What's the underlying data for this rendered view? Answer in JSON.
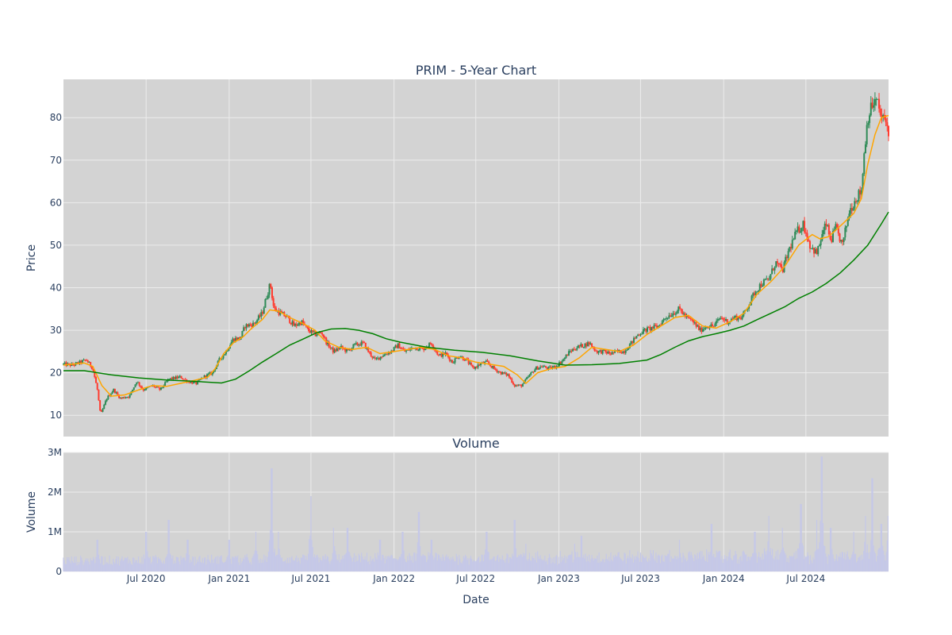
{
  "chart_data": {
    "type": "candlestick",
    "title": "PRIM - 5-Year Chart",
    "price_panel": {
      "ylabel": "Price",
      "yticks": [
        10,
        20,
        30,
        40,
        50,
        60,
        70,
        80
      ],
      "ylim": [
        5,
        89
      ],
      "moving_averages": [
        {
          "color": "#ffa500",
          "points": [
            [
              "2019-12-31",
              21.8
            ],
            [
              "2020-02-15",
              22.3
            ],
            [
              "2020-03-05",
              21.5
            ],
            [
              "2020-03-25",
              17.0
            ],
            [
              "2020-04-15",
              14.5
            ],
            [
              "2020-05-15",
              14.8
            ],
            [
              "2020-06-15",
              16.0
            ],
            [
              "2020-07-15",
              17.0
            ],
            [
              "2020-08-15",
              16.8
            ],
            [
              "2020-09-15",
              17.5
            ],
            [
              "2020-10-15",
              18.2
            ],
            [
              "2020-11-15",
              19.0
            ],
            [
              "2020-12-01",
              21.0
            ],
            [
              "2020-12-20",
              24.5
            ],
            [
              "2021-01-10",
              27.0
            ],
            [
              "2021-02-01",
              28.5
            ],
            [
              "2021-02-20",
              30.5
            ],
            [
              "2021-03-15",
              32.5
            ],
            [
              "2021-04-01",
              34.8
            ],
            [
              "2021-04-20",
              34.5
            ],
            [
              "2021-05-15",
              33.0
            ],
            [
              "2021-06-15",
              31.5
            ],
            [
              "2021-07-10",
              30.0
            ],
            [
              "2021-08-01",
              27.5
            ],
            [
              "2021-09-01",
              26.0
            ],
            [
              "2021-10-01",
              25.5
            ],
            [
              "2021-11-01",
              26.0
            ],
            [
              "2021-12-01",
              24.5
            ],
            [
              "2022-01-01",
              25.0
            ],
            [
              "2022-02-01",
              25.5
            ],
            [
              "2022-03-01",
              26.0
            ],
            [
              "2022-04-01",
              25.5
            ],
            [
              "2022-05-01",
              24.0
            ],
            [
              "2022-06-01",
              23.5
            ],
            [
              "2022-07-01",
              22.5
            ],
            [
              "2022-08-01",
              22.0
            ],
            [
              "2022-09-01",
              21.5
            ],
            [
              "2022-10-01",
              19.5
            ],
            [
              "2022-10-20",
              17.5
            ],
            [
              "2022-11-15",
              20.0
            ],
            [
              "2022-12-15",
              21.0
            ],
            [
              "2023-01-15",
              21.5
            ],
            [
              "2023-02-15",
              23.5
            ],
            [
              "2023-03-15",
              26.0
            ],
            [
              "2023-04-15",
              25.5
            ],
            [
              "2023-05-15",
              25.0
            ],
            [
              "2023-06-15",
              26.5
            ],
            [
              "2023-07-15",
              29.0
            ],
            [
              "2023-08-15",
              31.0
            ],
            [
              "2023-09-15",
              33.0
            ],
            [
              "2023-10-15",
              33.5
            ],
            [
              "2023-11-15",
              31.0
            ],
            [
              "2023-12-15",
              30.5
            ],
            [
              "2024-01-15",
              32.0
            ],
            [
              "2024-02-15",
              34.0
            ],
            [
              "2024-03-15",
              38.5
            ],
            [
              "2024-04-15",
              41.5
            ],
            [
              "2024-05-15",
              45.0
            ],
            [
              "2024-06-15",
              50.0
            ],
            [
              "2024-07-15",
              52.5
            ],
            [
              "2024-08-01",
              51.5
            ],
            [
              "2024-08-20",
              52.0
            ],
            [
              "2024-09-15",
              54.5
            ],
            [
              "2024-10-15",
              57.5
            ],
            [
              "2024-11-01",
              61.0
            ],
            [
              "2024-11-15",
              69.0
            ],
            [
              "2024-12-01",
              76.0
            ],
            [
              "2024-12-15",
              80.0
            ],
            [
              "2024-12-31",
              80.5
            ]
          ]
        },
        {
          "color": "#008000",
          "points": [
            [
              "2019-12-31",
              20.5
            ],
            [
              "2020-02-15",
              20.5
            ],
            [
              "2020-04-15",
              19.5
            ],
            [
              "2020-06-15",
              18.8
            ],
            [
              "2020-08-15",
              18.3
            ],
            [
              "2020-10-15",
              18.0
            ],
            [
              "2020-12-15",
              17.6
            ],
            [
              "2021-01-15",
              18.5
            ],
            [
              "2021-02-15",
              20.5
            ],
            [
              "2021-03-15",
              22.5
            ],
            [
              "2021-04-15",
              24.5
            ],
            [
              "2021-05-15",
              26.5
            ],
            [
              "2021-06-15",
              28.0
            ],
            [
              "2021-07-15",
              29.5
            ],
            [
              "2021-08-15",
              30.3
            ],
            [
              "2021-09-15",
              30.4
            ],
            [
              "2021-10-15",
              30.0
            ],
            [
              "2021-11-15",
              29.2
            ],
            [
              "2021-12-15",
              28.0
            ],
            [
              "2022-01-15",
              27.2
            ],
            [
              "2022-03-15",
              26.0
            ],
            [
              "2022-05-15",
              25.3
            ],
            [
              "2022-07-15",
              24.8
            ],
            [
              "2022-09-15",
              24.0
            ],
            [
              "2022-11-15",
              22.8
            ],
            [
              "2023-01-15",
              21.8
            ],
            [
              "2023-03-15",
              21.9
            ],
            [
              "2023-05-15",
              22.2
            ],
            [
              "2023-07-15",
              23.0
            ],
            [
              "2023-08-15",
              24.3
            ],
            [
              "2023-09-15",
              26.0
            ],
            [
              "2023-10-15",
              27.5
            ],
            [
              "2023-11-15",
              28.5
            ],
            [
              "2023-12-15",
              29.2
            ],
            [
              "2024-01-15",
              30.0
            ],
            [
              "2024-02-15",
              31.0
            ],
            [
              "2024-03-15",
              32.5
            ],
            [
              "2024-04-15",
              34.0
            ],
            [
              "2024-05-15",
              35.5
            ],
            [
              "2024-06-15",
              37.5
            ],
            [
              "2024-07-15",
              39.0
            ],
            [
              "2024-08-15",
              41.0
            ],
            [
              "2024-09-15",
              43.5
            ],
            [
              "2024-10-15",
              46.5
            ],
            [
              "2024-11-15",
              50.0
            ],
            [
              "2024-12-15",
              55.0
            ],
            [
              "2024-12-31",
              57.8
            ]
          ]
        }
      ]
    },
    "candlestick_path": [
      [
        "2019-12-31",
        22
      ],
      [
        "2020-01-20",
        21.8
      ],
      [
        "2020-02-20",
        23
      ],
      [
        "2020-03-05",
        21
      ],
      [
        "2020-03-15",
        16
      ],
      [
        "2020-03-22",
        10
      ],
      [
        "2020-04-05",
        14
      ],
      [
        "2020-04-20",
        16
      ],
      [
        "2020-05-05",
        14
      ],
      [
        "2020-05-25",
        14.5
      ],
      [
        "2020-06-10",
        18
      ],
      [
        "2020-06-25",
        16
      ],
      [
        "2020-07-15",
        17
      ],
      [
        "2020-08-01",
        16
      ],
      [
        "2020-08-20",
        18.5
      ],
      [
        "2020-09-15",
        19
      ],
      [
        "2020-10-01",
        18
      ],
      [
        "2020-10-20",
        17.5
      ],
      [
        "2020-11-05",
        19
      ],
      [
        "2020-11-25",
        20
      ],
      [
        "2020-12-10",
        23
      ],
      [
        "2020-12-25",
        25
      ],
      [
        "2021-01-10",
        28
      ],
      [
        "2021-01-25",
        28
      ],
      [
        "2021-02-05",
        31
      ],
      [
        "2021-02-25",
        31.5
      ],
      [
        "2021-03-15",
        34
      ],
      [
        "2021-03-25",
        38
      ],
      [
        "2021-04-02",
        41
      ],
      [
        "2021-04-10",
        35
      ],
      [
        "2021-04-25",
        34
      ],
      [
        "2021-05-10",
        33
      ],
      [
        "2021-05-25",
        31
      ],
      [
        "2021-06-10",
        32
      ],
      [
        "2021-06-25",
        30
      ],
      [
        "2021-07-10",
        29
      ],
      [
        "2021-07-25",
        29.5
      ],
      [
        "2021-08-05",
        27
      ],
      [
        "2021-08-20",
        25
      ],
      [
        "2021-09-05",
        26
      ],
      [
        "2021-09-20",
        25
      ],
      [
        "2021-10-05",
        26.5
      ],
      [
        "2021-10-25",
        27
      ],
      [
        "2021-11-05",
        25
      ],
      [
        "2021-11-20",
        23
      ],
      [
        "2021-12-05",
        24
      ],
      [
        "2021-12-25",
        25
      ],
      [
        "2022-01-10",
        26.5
      ],
      [
        "2022-01-25",
        25
      ],
      [
        "2022-02-15",
        26
      ],
      [
        "2022-03-05",
        25.5
      ],
      [
        "2022-03-25",
        27
      ],
      [
        "2022-04-10",
        24
      ],
      [
        "2022-04-25",
        24.5
      ],
      [
        "2022-05-10",
        22.5
      ],
      [
        "2022-05-25",
        24
      ],
      [
        "2022-06-10",
        23
      ],
      [
        "2022-06-25",
        21
      ],
      [
        "2022-07-10",
        22
      ],
      [
        "2022-07-25",
        22.5
      ],
      [
        "2022-08-10",
        21
      ],
      [
        "2022-08-25",
        20
      ],
      [
        "2022-09-10",
        19.5
      ],
      [
        "2022-09-25",
        17
      ],
      [
        "2022-10-10",
        17
      ],
      [
        "2022-10-25",
        19
      ],
      [
        "2022-11-10",
        21
      ],
      [
        "2022-11-25",
        21.5
      ],
      [
        "2022-12-10",
        21
      ],
      [
        "2022-12-25",
        21.5
      ],
      [
        "2023-01-10",
        23
      ],
      [
        "2023-01-25",
        25
      ],
      [
        "2023-02-10",
        26
      ],
      [
        "2023-02-25",
        26.5
      ],
      [
        "2023-03-10",
        27
      ],
      [
        "2023-03-25",
        25
      ],
      [
        "2023-04-10",
        25
      ],
      [
        "2023-04-25",
        24.5
      ],
      [
        "2023-05-10",
        25
      ],
      [
        "2023-05-25",
        25
      ],
      [
        "2023-06-10",
        27
      ],
      [
        "2023-06-25",
        29
      ],
      [
        "2023-07-10",
        30
      ],
      [
        "2023-07-25",
        30.5
      ],
      [
        "2023-08-10",
        31
      ],
      [
        "2023-08-25",
        33
      ],
      [
        "2023-09-10",
        34
      ],
      [
        "2023-09-25",
        35
      ],
      [
        "2023-10-10",
        33
      ],
      [
        "2023-10-25",
        32
      ],
      [
        "2023-11-10",
        30
      ],
      [
        "2023-11-25",
        31
      ],
      [
        "2023-12-10",
        31
      ],
      [
        "2023-12-25",
        33
      ],
      [
        "2024-01-10",
        32
      ],
      [
        "2024-01-25",
        33
      ],
      [
        "2024-02-10",
        33
      ],
      [
        "2024-02-25",
        36
      ],
      [
        "2024-03-10",
        39
      ],
      [
        "2024-03-25",
        41
      ],
      [
        "2024-04-10",
        42
      ],
      [
        "2024-04-25",
        46
      ],
      [
        "2024-05-10",
        44
      ],
      [
        "2024-05-25",
        49
      ],
      [
        "2024-06-10",
        53
      ],
      [
        "2024-06-25",
        55
      ],
      [
        "2024-07-10",
        50
      ],
      [
        "2024-07-25",
        48
      ],
      [
        "2024-08-05",
        52
      ],
      [
        "2024-08-15",
        55
      ],
      [
        "2024-08-25",
        51
      ],
      [
        "2024-09-05",
        54
      ],
      [
        "2024-09-20",
        50
      ],
      [
        "2024-10-05",
        58
      ],
      [
        "2024-10-20",
        61
      ],
      [
        "2024-11-01",
        63
      ],
      [
        "2024-11-08",
        73
      ],
      [
        "2024-11-15",
        80
      ],
      [
        "2024-11-25",
        83
      ],
      [
        "2024-12-05",
        84
      ],
      [
        "2024-12-15",
        80
      ],
      [
        "2024-12-25",
        79
      ],
      [
        "2024-12-31",
        77
      ]
    ],
    "volume_panel": {
      "title": "Volume",
      "ylabel": "Volume",
      "yticks": [
        {
          "value": 0,
          "label": "0"
        },
        {
          "value": 1000000,
          "label": "1M"
        },
        {
          "value": 2000000,
          "label": "2M"
        },
        {
          "value": 3000000,
          "label": "3M"
        }
      ],
      "ylim": [
        0,
        3000000
      ],
      "bar_color": "#c5c8e8",
      "spikes": [
        [
          "2020-03-15",
          800000
        ],
        [
          "2020-07-01",
          1000000
        ],
        [
          "2020-08-20",
          1300000
        ],
        [
          "2020-10-01",
          800000
        ],
        [
          "2021-01-01",
          800000
        ],
        [
          "2021-03-01",
          1000000
        ],
        [
          "2021-04-05",
          2600000
        ],
        [
          "2021-04-20",
          1000000
        ],
        [
          "2021-07-01",
          1900000
        ],
        [
          "2021-08-20",
          1100000
        ],
        [
          "2021-09-20",
          1100000
        ],
        [
          "2021-12-01",
          800000
        ],
        [
          "2022-01-20",
          1000000
        ],
        [
          "2022-02-25",
          1500000
        ],
        [
          "2022-03-25",
          800000
        ],
        [
          "2022-07-25",
          1000000
        ],
        [
          "2022-09-25",
          1300000
        ],
        [
          "2022-10-20",
          700000
        ],
        [
          "2023-02-05",
          700000
        ],
        [
          "2023-02-20",
          900000
        ],
        [
          "2023-09-25",
          800000
        ],
        [
          "2023-12-05",
          1200000
        ],
        [
          "2024-03-10",
          1000000
        ],
        [
          "2024-04-10",
          1400000
        ],
        [
          "2024-05-10",
          1100000
        ],
        [
          "2024-06-20",
          1700000
        ],
        [
          "2024-07-25",
          1300000
        ],
        [
          "2024-08-05",
          2900000
        ],
        [
          "2024-08-25",
          1100000
        ],
        [
          "2024-10-15",
          1000000
        ],
        [
          "2024-11-10",
          1400000
        ],
        [
          "2024-11-25",
          2350000
        ],
        [
          "2024-12-15",
          1200000
        ],
        [
          "2024-12-31",
          1400000
        ]
      ]
    },
    "x_axis": {
      "label": "Date",
      "range": [
        "2019-12-31",
        "2024-12-31"
      ],
      "ticks": [
        {
          "date": "2020-07-01",
          "label": "Jul 2020"
        },
        {
          "date": "2021-01-01",
          "label": "Jan 2021"
        },
        {
          "date": "2021-07-01",
          "label": "Jul 2021"
        },
        {
          "date": "2022-01-01",
          "label": "Jan 2022"
        },
        {
          "date": "2022-07-01",
          "label": "Jul 2022"
        },
        {
          "date": "2023-01-01",
          "label": "Jan 2023"
        },
        {
          "date": "2023-07-01",
          "label": "Jul 2023"
        },
        {
          "date": "2024-01-01",
          "label": "Jan 2024"
        },
        {
          "date": "2024-07-01",
          "label": "Jul 2024"
        }
      ]
    },
    "colors": {
      "increasing": "#2e8b57",
      "decreasing": "#ff3b2f",
      "plot_bg": "#d3d3d3",
      "grid": "#ececec"
    },
    "grid": true,
    "legend": "none"
  }
}
